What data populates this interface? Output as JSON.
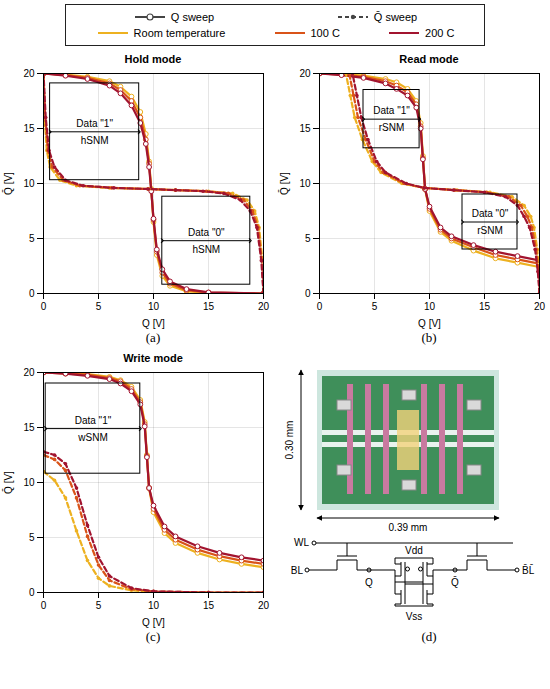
{
  "legend": "top",
  "legend_entries": [
    {
      "name": "Q sweep",
      "marker": "circle",
      "line_style": "solid"
    },
    {
      "name": "Q̄ sweep",
      "marker": "dot",
      "line_style": "dashed"
    },
    {
      "name": "Room temperature",
      "color": "#EDB120"
    },
    {
      "name": "100 C",
      "color": "#D95319"
    },
    {
      "name": "200 C",
      "color": "#A2142F"
    }
  ],
  "chart_data": [
    {
      "type": "line",
      "panel": "(a)",
      "title": "Hold mode",
      "x_label": "Q [V]",
      "y_label": "Q̄ [V]",
      "xlim": [
        0,
        20
      ],
      "ylim": [
        0,
        20
      ],
      "xticks": [
        0,
        5,
        10,
        15,
        20
      ],
      "yticks": [
        0,
        5,
        10,
        15,
        20
      ],
      "grid": true,
      "series": [
        {
          "name": "Room temperature",
          "sweep": "Q sweep",
          "color": "#EDB120",
          "marker": "circle",
          "line_style": "solid",
          "x": [
            0,
            2,
            4,
            6,
            7,
            8,
            8.8,
            9.3,
            9.6,
            9.8,
            10,
            10.3,
            10.8,
            11.5,
            13,
            15,
            20
          ],
          "values": [
            20,
            19.9,
            19.7,
            19.3,
            18.8,
            17.9,
            16.5,
            14.5,
            12,
            9.5,
            6.5,
            3.5,
            1.6,
            0.7,
            0.2,
            0.05,
            0
          ]
        },
        {
          "name": "100 C",
          "sweep": "Q sweep",
          "color": "#D95319",
          "marker": "circle",
          "line_style": "solid",
          "x": [
            0,
            2,
            4,
            6,
            7,
            8,
            8.8,
            9.3,
            9.6,
            9.8,
            10,
            10.3,
            10.8,
            11.5,
            13,
            15,
            20
          ],
          "values": [
            20,
            19.85,
            19.6,
            19.1,
            18.5,
            17.5,
            16,
            14,
            11.8,
            9.4,
            6.7,
            3.8,
            1.9,
            0.9,
            0.3,
            0.08,
            0
          ]
        },
        {
          "name": "200 C",
          "sweep": "Q sweep",
          "color": "#A2142F",
          "marker": "circle",
          "line_style": "solid",
          "x": [
            0,
            2,
            4,
            6,
            7,
            8,
            8.8,
            9.3,
            9.6,
            9.8,
            10,
            10.3,
            10.8,
            11.5,
            13,
            15,
            20
          ],
          "values": [
            20,
            19.8,
            19.5,
            18.9,
            18.2,
            17.1,
            15.5,
            13.6,
            11.5,
            9.3,
            6.8,
            4.0,
            2.2,
            1.1,
            0.4,
            0.1,
            0
          ]
        },
        {
          "name": "Room temperature",
          "sweep": "Q̄ sweep",
          "color": "#EDB120",
          "marker": "dot",
          "line_style": "dashed",
          "x": [
            20,
            19.9,
            19.6,
            19.2,
            18.5,
            17.2,
            15,
            12,
            9.5,
            6,
            3,
            1.5,
            0.6,
            0.3,
            0.1,
            0
          ],
          "values": [
            0,
            3,
            6,
            7.5,
            8.5,
            9.1,
            9.3,
            9.4,
            9.5,
            9.6,
            9.8,
            10.3,
            11.5,
            13,
            16,
            20
          ]
        },
        {
          "name": "100 C",
          "sweep": "Q̄ sweep",
          "color": "#D95319",
          "marker": "dot",
          "line_style": "dashed",
          "x": [
            20,
            19.85,
            19.5,
            19.0,
            18.2,
            16.8,
            14.8,
            12,
            9.5,
            6.2,
            3.3,
            1.8,
            0.8,
            0.4,
            0.15,
            0
          ],
          "values": [
            0,
            3,
            6,
            7.5,
            8.5,
            9.1,
            9.3,
            9.4,
            9.5,
            9.6,
            9.8,
            10.3,
            11.5,
            13,
            16,
            20
          ]
        },
        {
          "name": "200 C",
          "sweep": "Q̄ sweep",
          "color": "#A2142F",
          "marker": "dot",
          "line_style": "dashed",
          "x": [
            20,
            19.8,
            19.4,
            18.8,
            17.9,
            16.4,
            14.5,
            12,
            9.5,
            6.4,
            3.6,
            2.0,
            1.0,
            0.5,
            0.2,
            0
          ],
          "values": [
            0,
            3,
            6,
            7.5,
            8.5,
            9.1,
            9.3,
            9.4,
            9.5,
            9.6,
            9.8,
            10.3,
            11.5,
            13,
            16,
            20
          ]
        }
      ],
      "boxes": [
        {
          "label": "Data \"1\"",
          "metric": "hSNM",
          "x": [
            0.6,
            8.7
          ],
          "y": [
            10.3,
            19.1
          ]
        },
        {
          "label": "Data \"0\"",
          "metric": "hSNM",
          "x": [
            10.8,
            18.8
          ],
          "y": [
            0.8,
            8.8
          ]
        }
      ]
    },
    {
      "type": "line",
      "panel": "(b)",
      "title": "Read mode",
      "x_label": "Q [V]",
      "y_label": "Q̄ [V]",
      "xlim": [
        0,
        20
      ],
      "ylim": [
        0,
        20
      ],
      "xticks": [
        0,
        5,
        10,
        15,
        20
      ],
      "yticks": [
        0,
        5,
        10,
        15,
        20
      ],
      "grid": true,
      "series": [
        {
          "name": "Room temperature",
          "sweep": "Q sweep",
          "color": "#EDB120",
          "marker": "circle",
          "line_style": "solid",
          "x": [
            0,
            2,
            4,
            6,
            7,
            8,
            8.8,
            9.2,
            9.4,
            9.6,
            10,
            11,
            12,
            14,
            16,
            18,
            20
          ],
          "values": [
            20,
            19.95,
            19.8,
            19.5,
            19.2,
            18.6,
            17.5,
            15.5,
            12.5,
            9.5,
            7.5,
            5.6,
            4.8,
            3.9,
            3.2,
            2.8,
            2.4
          ]
        },
        {
          "name": "100 C",
          "sweep": "Q sweep",
          "color": "#D95319",
          "marker": "circle",
          "line_style": "solid",
          "x": [
            0,
            2,
            4,
            6,
            7,
            8,
            8.8,
            9.2,
            9.4,
            9.6,
            10,
            11,
            12,
            14,
            16,
            18,
            20
          ],
          "values": [
            20,
            19.9,
            19.7,
            19.3,
            18.9,
            18.3,
            17.2,
            15.2,
            12.3,
            9.5,
            7.7,
            5.8,
            5.0,
            4.2,
            3.5,
            3.1,
            2.7
          ]
        },
        {
          "name": "200 C",
          "sweep": "Q sweep",
          "color": "#A2142F",
          "marker": "circle",
          "line_style": "solid",
          "x": [
            0,
            2,
            4,
            6,
            7,
            8,
            8.8,
            9.2,
            9.4,
            9.6,
            10,
            11,
            12,
            14,
            16,
            18,
            20
          ],
          "values": [
            20,
            19.85,
            19.6,
            19.1,
            18.6,
            18.0,
            16.9,
            15.0,
            12.2,
            9.5,
            7.9,
            6.0,
            5.2,
            4.4,
            3.8,
            3.4,
            3.0
          ]
        },
        {
          "name": "Room temperature",
          "sweep": "Q̄ sweep",
          "color": "#EDB120",
          "marker": "dot",
          "line_style": "dashed",
          "x": [
            20,
            19.95,
            19.8,
            19.5,
            19.2,
            18.6,
            17.5,
            15.5,
            12.5,
            9.5,
            7.5,
            5.6,
            4.8,
            3.9,
            3.2,
            2.8,
            2.4
          ],
          "values": [
            0,
            2,
            4,
            6,
            7,
            8,
            8.8,
            9.2,
            9.4,
            9.6,
            10,
            11,
            12,
            14,
            16,
            18,
            20
          ]
        },
        {
          "name": "100 C",
          "sweep": "Q̄ sweep",
          "color": "#D95319",
          "marker": "dot",
          "line_style": "dashed",
          "x": [
            20,
            19.9,
            19.7,
            19.3,
            18.9,
            18.3,
            17.2,
            15.2,
            12.3,
            9.5,
            7.7,
            5.8,
            5.0,
            4.2,
            3.5,
            3.1,
            2.7
          ],
          "values": [
            0,
            2,
            4,
            6,
            7,
            8,
            8.8,
            9.2,
            9.4,
            9.6,
            10,
            11,
            12,
            14,
            16,
            18,
            20
          ]
        },
        {
          "name": "200 C",
          "sweep": "Q̄ sweep",
          "color": "#A2142F",
          "marker": "dot",
          "line_style": "dashed",
          "x": [
            20,
            19.85,
            19.6,
            19.1,
            18.6,
            18.0,
            16.9,
            15.0,
            12.2,
            9.5,
            7.9,
            6.0,
            5.2,
            4.4,
            3.8,
            3.4,
            3.0
          ],
          "values": [
            0,
            2,
            4,
            6,
            7,
            8,
            8.8,
            9.2,
            9.4,
            9.6,
            10,
            11,
            12,
            14,
            16,
            18,
            20
          ]
        }
      ],
      "boxes": [
        {
          "label": "Data \"1\"",
          "metric": "rSNM",
          "x": [
            4.0,
            9.1
          ],
          "y": [
            13.2,
            18.5
          ]
        },
        {
          "label": "Data \"0\"",
          "metric": "rSNM",
          "x": [
            13.0,
            18.0
          ],
          "y": [
            4.0,
            9.0
          ]
        }
      ]
    },
    {
      "type": "line",
      "panel": "(c)",
      "title": "Write mode",
      "x_label": "Q [V]",
      "y_label": "Q̄ [V]",
      "xlim": [
        0,
        20
      ],
      "ylim": [
        0,
        20
      ],
      "xticks": [
        0,
        5,
        10,
        15,
        20
      ],
      "yticks": [
        0,
        5,
        10,
        15,
        20
      ],
      "grid": true,
      "series": [
        {
          "name": "Room temperature",
          "sweep": "Q sweep",
          "color": "#EDB120",
          "marker": "circle",
          "line_style": "solid",
          "x": [
            0,
            2,
            4,
            6,
            7,
            8,
            8.8,
            9.2,
            9.4,
            9.6,
            10,
            11,
            12,
            14,
            16,
            18,
            20
          ],
          "values": [
            20,
            19.95,
            19.85,
            19.6,
            19.3,
            18.7,
            17.5,
            15.5,
            12.5,
            9.5,
            7.3,
            5.4,
            4.5,
            3.6,
            3.0,
            2.6,
            2.3
          ]
        },
        {
          "name": "100 C",
          "sweep": "Q sweep",
          "color": "#D95319",
          "marker": "circle",
          "line_style": "solid",
          "x": [
            0,
            2,
            4,
            6,
            7,
            8,
            8.8,
            9.2,
            9.4,
            9.6,
            10,
            11,
            12,
            14,
            16,
            18,
            20
          ],
          "values": [
            20,
            19.9,
            19.8,
            19.5,
            19.2,
            18.5,
            17.3,
            15.3,
            12.4,
            9.5,
            7.6,
            5.7,
            4.8,
            3.9,
            3.3,
            2.9,
            2.6
          ]
        },
        {
          "name": "200 C",
          "sweep": "Q sweep",
          "color": "#A2142F",
          "marker": "circle",
          "line_style": "solid",
          "x": [
            0,
            2,
            4,
            6,
            7,
            8,
            8.8,
            9.2,
            9.4,
            9.6,
            10,
            11,
            12,
            14,
            16,
            18,
            20
          ],
          "values": [
            20,
            19.9,
            19.7,
            19.4,
            19.0,
            18.3,
            17.1,
            15.1,
            12.3,
            9.5,
            7.9,
            6.0,
            5.1,
            4.2,
            3.6,
            3.2,
            2.9
          ]
        },
        {
          "name": "Room temperature",
          "sweep": "Q̄ sweep",
          "color": "#EDB120",
          "marker": "dot",
          "line_style": "dashed",
          "x": [
            0,
            1,
            2,
            3,
            4,
            5,
            6,
            8,
            10,
            15,
            20
          ],
          "values": [
            11.0,
            10.2,
            8.6,
            5.6,
            2.9,
            1.3,
            0.6,
            0.2,
            0.05,
            0,
            0
          ]
        },
        {
          "name": "100 C",
          "sweep": "Q̄ sweep",
          "color": "#D95319",
          "marker": "dot",
          "line_style": "dashed",
          "x": [
            0,
            1,
            2,
            3,
            4,
            5,
            6,
            8,
            10,
            15,
            20
          ],
          "values": [
            12.5,
            12.1,
            11.1,
            8.6,
            5.1,
            2.5,
            1.1,
            0.3,
            0.1,
            0,
            0
          ]
        },
        {
          "name": "200 C",
          "sweep": "Q̄ sweep",
          "color": "#A2142F",
          "marker": "dot",
          "line_style": "dashed",
          "x": [
            0,
            1,
            2,
            3,
            4,
            5,
            6,
            8,
            10,
            15,
            20
          ],
          "values": [
            12.8,
            12.5,
            11.7,
            9.5,
            6.1,
            3.2,
            1.5,
            0.4,
            0.1,
            0,
            0
          ]
        }
      ],
      "boxes": [
        {
          "label": "Data \"1\"",
          "metric": "wSNM",
          "x": [
            0.2,
            8.8
          ],
          "y": [
            10.8,
            19.0
          ]
        }
      ]
    }
  ],
  "panel_d": {
    "panel": "(d)",
    "layout_height": "0.30 mm",
    "layout_width": "0.39 mm",
    "schematic_labels": {
      "wl": "WL",
      "vdd": "Vdd",
      "vss": "Vss",
      "bl": "BL",
      "blbar": "B̄L̄",
      "q": "Q",
      "qbar": "Q̄"
    }
  }
}
